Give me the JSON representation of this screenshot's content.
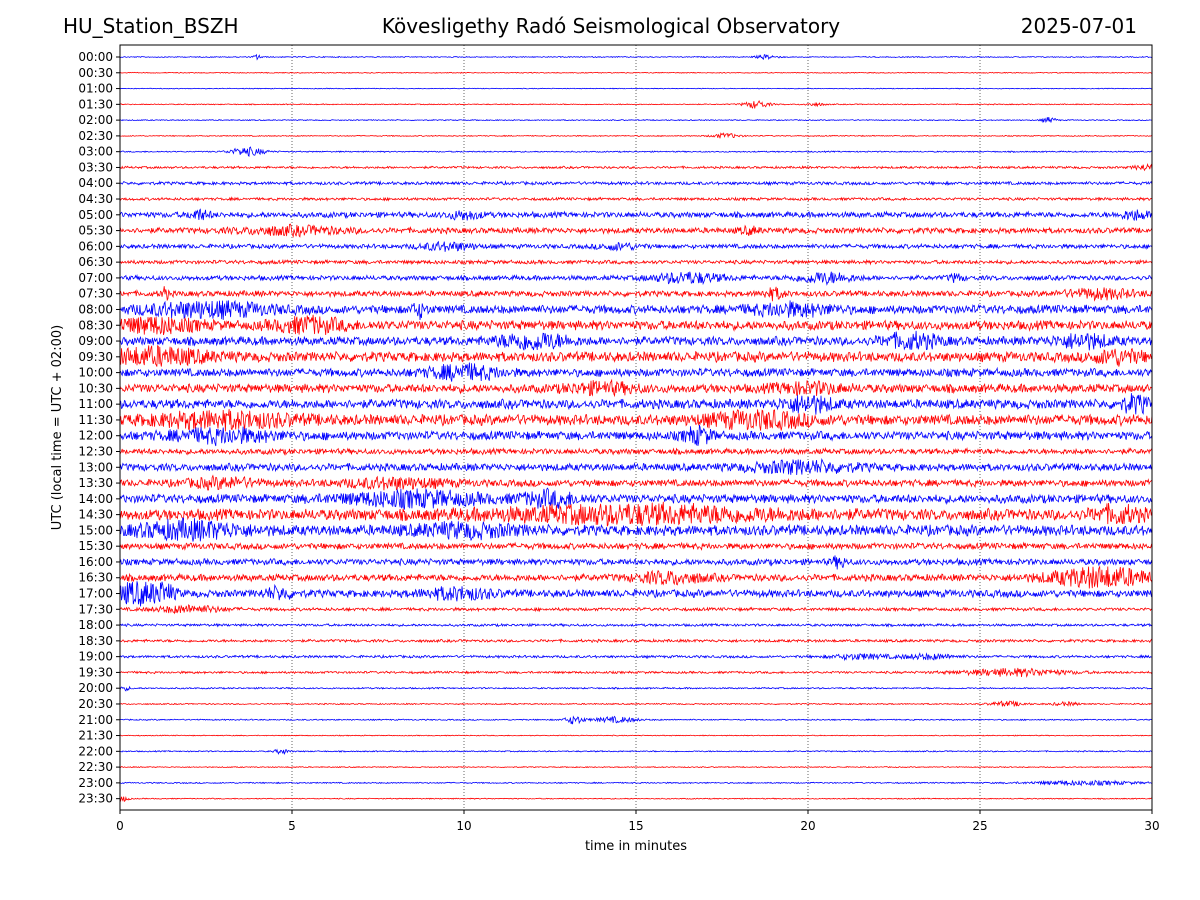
{
  "header": {
    "station": "HU_Station_BSZH",
    "observatory": "Kövesligethy Radó Seismological Observatory",
    "date": "2025-07-01"
  },
  "chart_data": {
    "type": "line",
    "title": "Kövesligethy Radó Seismological Observatory",
    "xlabel": "time in minutes",
    "ylabel": "UTC (local time = UTC + 02:00)",
    "xlim": [
      0,
      30
    ],
    "x_ticks": [
      0,
      5,
      10,
      15,
      20,
      25,
      30
    ],
    "grid": "vertical dotted at x ticks",
    "colors": {
      "even_rows": "#0000ff",
      "odd_rows": "#ff0000"
    },
    "rows": [
      {
        "label": "00:00",
        "noise": 0.08,
        "events": [
          {
            "t": 4.0,
            "a": 0.35,
            "w": 0.12
          },
          {
            "t": 18.8,
            "a": 0.3,
            "w": 0.3
          }
        ]
      },
      {
        "label": "00:30",
        "noise": 0.07,
        "events": []
      },
      {
        "label": "01:00",
        "noise": 0.06,
        "events": []
      },
      {
        "label": "01:30",
        "noise": 0.08,
        "events": [
          {
            "t": 18.5,
            "a": 0.55,
            "w": 0.35
          },
          {
            "t": 20.2,
            "a": 0.2,
            "w": 0.3
          }
        ]
      },
      {
        "label": "02:00",
        "noise": 0.08,
        "events": [
          {
            "t": 27.0,
            "a": 0.4,
            "w": 0.2
          }
        ]
      },
      {
        "label": "02:30",
        "noise": 0.08,
        "events": [
          {
            "t": 17.6,
            "a": 0.35,
            "w": 0.4
          }
        ]
      },
      {
        "label": "03:00",
        "noise": 0.1,
        "events": [
          {
            "t": 3.7,
            "a": 0.6,
            "w": 0.5
          }
        ]
      },
      {
        "label": "03:30",
        "noise": 0.18,
        "events": [
          {
            "t": 29.8,
            "a": 0.4,
            "w": 0.3
          }
        ]
      },
      {
        "label": "04:00",
        "noise": 0.25,
        "events": []
      },
      {
        "label": "04:30",
        "noise": 0.22,
        "events": []
      },
      {
        "label": "05:00",
        "noise": 0.45,
        "events": [
          {
            "t": 2.3,
            "a": 0.6,
            "w": 0.3
          },
          {
            "t": 10.0,
            "a": 0.5,
            "w": 0.5
          },
          {
            "t": 29.5,
            "a": 0.6,
            "w": 0.4
          }
        ]
      },
      {
        "label": "05:30",
        "noise": 0.45,
        "events": [
          {
            "t": 5.0,
            "a": 0.5,
            "w": 1.5
          },
          {
            "t": 18.3,
            "a": 0.4,
            "w": 0.3
          }
        ]
      },
      {
        "label": "06:00",
        "noise": 0.35,
        "events": [
          {
            "t": 9.5,
            "a": 0.5,
            "w": 0.8
          },
          {
            "t": 14.5,
            "a": 0.4,
            "w": 0.6
          }
        ]
      },
      {
        "label": "06:30",
        "noise": 0.3,
        "events": []
      },
      {
        "label": "07:00",
        "noise": 0.38,
        "events": [
          {
            "t": 16.5,
            "a": 0.7,
            "w": 1.0
          },
          {
            "t": 20.5,
            "a": 0.7,
            "w": 0.8
          },
          {
            "t": 24.3,
            "a": 0.5,
            "w": 0.2
          }
        ]
      },
      {
        "label": "07:30",
        "noise": 0.45,
        "events": [
          {
            "t": 1.3,
            "a": 0.9,
            "w": 0.1
          },
          {
            "t": 19.0,
            "a": 0.7,
            "w": 0.3
          },
          {
            "t": 28.5,
            "a": 0.6,
            "w": 1.0
          }
        ]
      },
      {
        "label": "08:00",
        "noise": 0.7,
        "events": [
          {
            "t": 2.5,
            "a": 0.9,
            "w": 1.8
          },
          {
            "t": 8.7,
            "a": 0.9,
            "w": 0.2
          },
          {
            "t": 19.5,
            "a": 0.7,
            "w": 1.2
          }
        ]
      },
      {
        "label": "08:30",
        "noise": 0.75,
        "events": [
          {
            "t": 1.0,
            "a": 0.9,
            "w": 1.2
          },
          {
            "t": 5.5,
            "a": 0.9,
            "w": 1.0
          }
        ]
      },
      {
        "label": "09:00",
        "noise": 0.7,
        "events": [
          {
            "t": 12.0,
            "a": 1.0,
            "w": 1.0
          },
          {
            "t": 23.0,
            "a": 0.9,
            "w": 0.8
          },
          {
            "t": 28.0,
            "a": 0.8,
            "w": 0.8
          }
        ]
      },
      {
        "label": "09:30",
        "noise": 0.8,
        "events": [
          {
            "t": 1.0,
            "a": 1.0,
            "w": 1.5
          },
          {
            "t": 29.0,
            "a": 0.8,
            "w": 0.7
          }
        ]
      },
      {
        "label": "10:00",
        "noise": 0.65,
        "events": [
          {
            "t": 10.0,
            "a": 0.9,
            "w": 1.0
          }
        ]
      },
      {
        "label": "10:30",
        "noise": 0.7,
        "events": [
          {
            "t": 14.0,
            "a": 0.6,
            "w": 1.0
          },
          {
            "t": 20.0,
            "a": 0.6,
            "w": 1.0
          }
        ]
      },
      {
        "label": "11:00",
        "noise": 0.75,
        "events": [
          {
            "t": 20.0,
            "a": 1.0,
            "w": 0.7
          },
          {
            "t": 29.5,
            "a": 1.0,
            "w": 0.4
          }
        ]
      },
      {
        "label": "11:30",
        "noise": 0.85,
        "events": [
          {
            "t": 3.0,
            "a": 0.9,
            "w": 2.0
          },
          {
            "t": 18.5,
            "a": 0.9,
            "w": 1.5
          }
        ]
      },
      {
        "label": "12:00",
        "noise": 0.7,
        "events": [
          {
            "t": 3.0,
            "a": 0.8,
            "w": 1.5
          },
          {
            "t": 16.8,
            "a": 1.0,
            "w": 0.4
          }
        ]
      },
      {
        "label": "12:30",
        "noise": 0.45,
        "events": []
      },
      {
        "label": "13:00",
        "noise": 0.6,
        "events": [
          {
            "t": 19.8,
            "a": 0.7,
            "w": 1.5
          }
        ]
      },
      {
        "label": "13:30",
        "noise": 0.55,
        "events": [
          {
            "t": 3.0,
            "a": 0.6,
            "w": 1.0
          },
          {
            "t": 8.0,
            "a": 0.6,
            "w": 1.5
          }
        ]
      },
      {
        "label": "14:00",
        "noise": 0.7,
        "events": [
          {
            "t": 8.5,
            "a": 0.9,
            "w": 2.0
          },
          {
            "t": 12.5,
            "a": 0.9,
            "w": 0.8
          }
        ]
      },
      {
        "label": "14:30",
        "noise": 0.9,
        "events": [
          {
            "t": 15.0,
            "a": 1.0,
            "w": 4.0
          },
          {
            "t": 29.0,
            "a": 0.9,
            "w": 0.7
          }
        ]
      },
      {
        "label": "15:00",
        "noise": 0.85,
        "events": [
          {
            "t": 2.0,
            "a": 1.0,
            "w": 1.5
          },
          {
            "t": 10.0,
            "a": 0.7,
            "w": 1.5
          }
        ]
      },
      {
        "label": "15:30",
        "noise": 0.5,
        "events": []
      },
      {
        "label": "16:00",
        "noise": 0.5,
        "events": [
          {
            "t": 20.9,
            "a": 0.7,
            "w": 0.2
          }
        ]
      },
      {
        "label": "16:30",
        "noise": 0.55,
        "events": [
          {
            "t": 28.5,
            "a": 1.3,
            "w": 1.5
          },
          {
            "t": 16.0,
            "a": 0.7,
            "w": 1.0
          }
        ]
      },
      {
        "label": "17:00",
        "noise": 0.6,
        "events": [
          {
            "t": 0.5,
            "a": 1.4,
            "w": 0.7
          },
          {
            "t": 1.3,
            "a": 0.9,
            "w": 0.3
          },
          {
            "t": 4.6,
            "a": 0.7,
            "w": 0.4
          },
          {
            "t": 9.8,
            "a": 0.7,
            "w": 1.0
          }
        ]
      },
      {
        "label": "17:30",
        "noise": 0.25,
        "events": [
          {
            "t": 2.0,
            "a": 0.5,
            "w": 1.0
          }
        ]
      },
      {
        "label": "18:00",
        "noise": 0.2,
        "events": []
      },
      {
        "label": "18:30",
        "noise": 0.22,
        "events": []
      },
      {
        "label": "19:00",
        "noise": 0.2,
        "events": [
          {
            "t": 21.5,
            "a": 0.35,
            "w": 0.8
          },
          {
            "t": 23.5,
            "a": 0.35,
            "w": 0.8
          }
        ]
      },
      {
        "label": "19:30",
        "noise": 0.18,
        "events": [
          {
            "t": 26.0,
            "a": 0.5,
            "w": 1.5
          }
        ]
      },
      {
        "label": "20:00",
        "noise": 0.12,
        "events": [
          {
            "t": 0.1,
            "a": 0.3,
            "w": 0.2
          }
        ]
      },
      {
        "label": "20:30",
        "noise": 0.1,
        "events": [
          {
            "t": 25.8,
            "a": 0.35,
            "w": 0.5
          },
          {
            "t": 27.5,
            "a": 0.25,
            "w": 0.4
          }
        ]
      },
      {
        "label": "21:00",
        "noise": 0.1,
        "events": [
          {
            "t": 13.2,
            "a": 0.6,
            "w": 0.25
          },
          {
            "t": 14.4,
            "a": 0.4,
            "w": 0.6
          }
        ]
      },
      {
        "label": "21:30",
        "noise": 0.07,
        "events": []
      },
      {
        "label": "22:00",
        "noise": 0.1,
        "events": [
          {
            "t": 4.7,
            "a": 0.35,
            "w": 0.2
          }
        ]
      },
      {
        "label": "22:30",
        "noise": 0.08,
        "events": []
      },
      {
        "label": "23:00",
        "noise": 0.1,
        "events": [
          {
            "t": 28.0,
            "a": 0.3,
            "w": 1.5
          }
        ]
      },
      {
        "label": "23:30",
        "noise": 0.08,
        "events": [
          {
            "t": 0.1,
            "a": 0.35,
            "w": 0.15
          }
        ]
      }
    ]
  }
}
